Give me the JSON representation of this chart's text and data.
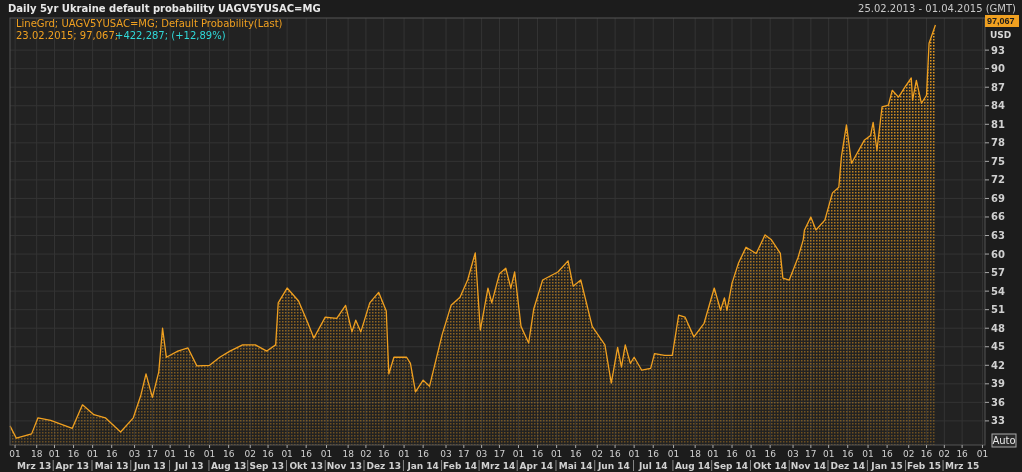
{
  "chart_data": {
    "type": "area",
    "title": "Daily 5yr Ukraine default probability UAGV5YUSAC=MG",
    "annotations": [
      "25.02.2013 - 01.04.2015 (GMT)",
      "23.02.2015; 97,067;",
      "+422,287; (+12,89%)",
      "USD",
      "Auto",
      "97,067"
    ],
    "legend": "top left",
    "grid": true,
    "xlim": [
      "2013-02-25",
      "2015-04-03"
    ],
    "xticks": [
      {
        "value": "2013-03-01",
        "label": "01"
      },
      {
        "value": "2013-03-18",
        "label": "18"
      },
      {
        "value": "2013-04-01",
        "label": "01"
      },
      {
        "value": "2013-04-16",
        "label": "16"
      },
      {
        "value": "2013-05-01",
        "label": "01"
      },
      {
        "value": "2013-05-16",
        "label": "16"
      },
      {
        "value": "2013-06-03",
        "label": "03"
      },
      {
        "value": "2013-06-17",
        "label": "17"
      },
      {
        "value": "2013-07-01",
        "label": "01"
      },
      {
        "value": "2013-07-16",
        "label": "16"
      },
      {
        "value": "2013-08-01",
        "label": "01"
      },
      {
        "value": "2013-08-16",
        "label": "16"
      },
      {
        "value": "2013-09-02",
        "label": "02"
      },
      {
        "value": "2013-09-16",
        "label": "16"
      },
      {
        "value": "2013-10-01",
        "label": "01"
      },
      {
        "value": "2013-10-16",
        "label": "16"
      },
      {
        "value": "2013-11-01",
        "label": "01"
      },
      {
        "value": "2013-11-18",
        "label": "18"
      },
      {
        "value": "2013-12-02",
        "label": "02"
      },
      {
        "value": "2013-12-16",
        "label": "16"
      },
      {
        "value": "2014-01-01",
        "label": "01"
      },
      {
        "value": "2014-01-16",
        "label": "16"
      },
      {
        "value": "2014-02-03",
        "label": "03"
      },
      {
        "value": "2014-02-17",
        "label": "17"
      },
      {
        "value": "2014-03-03",
        "label": "03"
      },
      {
        "value": "2014-03-17",
        "label": "17"
      },
      {
        "value": "2014-04-01",
        "label": "01"
      },
      {
        "value": "2014-04-16",
        "label": "16"
      },
      {
        "value": "2014-05-01",
        "label": "01"
      },
      {
        "value": "2014-05-16",
        "label": "16"
      },
      {
        "value": "2014-06-02",
        "label": "02"
      },
      {
        "value": "2014-06-16",
        "label": "16"
      },
      {
        "value": "2014-07-01",
        "label": "01"
      },
      {
        "value": "2014-07-16",
        "label": "16"
      },
      {
        "value": "2014-08-01",
        "label": "01"
      },
      {
        "value": "2014-08-18",
        "label": "18"
      },
      {
        "value": "2014-09-01",
        "label": "01"
      },
      {
        "value": "2014-09-16",
        "label": "16"
      },
      {
        "value": "2014-10-01",
        "label": "01"
      },
      {
        "value": "2014-10-16",
        "label": "16"
      },
      {
        "value": "2014-11-03",
        "label": "03"
      },
      {
        "value": "2014-11-17",
        "label": "17"
      },
      {
        "value": "2014-12-01",
        "label": "01"
      },
      {
        "value": "2014-12-16",
        "label": "16"
      },
      {
        "value": "2015-01-01",
        "label": "01"
      },
      {
        "value": "2015-01-16",
        "label": "16"
      },
      {
        "value": "2015-02-02",
        "label": "02"
      },
      {
        "value": "2015-02-16",
        "label": "16"
      },
      {
        "value": "2015-03-02",
        "label": "02"
      },
      {
        "value": "2015-03-16",
        "label": "16"
      },
      {
        "value": "2015-04-01",
        "label": "01"
      }
    ],
    "x2lim": [
      "2013-02-25",
      "2015-04-03"
    ],
    "x2ticks": [
      {
        "value": "2013-03-16",
        "label": "Mrz 13"
      },
      {
        "value": "2013-04-15",
        "label": "Apr 13"
      },
      {
        "value": "2013-05-16",
        "label": "Mai 13"
      },
      {
        "value": "2013-06-15",
        "label": "Jun 13"
      },
      {
        "value": "2013-07-16",
        "label": "Jul 13"
      },
      {
        "value": "2013-08-16",
        "label": "Aug 13"
      },
      {
        "value": "2013-09-15",
        "label": "Sep 13"
      },
      {
        "value": "2013-10-16",
        "label": "Okt 13"
      },
      {
        "value": "2013-11-15",
        "label": "Nov 13"
      },
      {
        "value": "2013-12-16",
        "label": "Dez 13"
      },
      {
        "value": "2014-01-16",
        "label": "Jan 14"
      },
      {
        "value": "2014-02-14",
        "label": "Feb 14"
      },
      {
        "value": "2014-03-16",
        "label": "Mrz 14"
      },
      {
        "value": "2014-04-15",
        "label": "Apr 14"
      },
      {
        "value": "2014-05-16",
        "label": "Mai 14"
      },
      {
        "value": "2014-06-15",
        "label": "Jun 14"
      },
      {
        "value": "2014-07-16",
        "label": "Jul 14"
      },
      {
        "value": "2014-08-16",
        "label": "Aug 14"
      },
      {
        "value": "2014-09-15",
        "label": "Sep 14"
      },
      {
        "value": "2014-10-16",
        "label": "Okt 14"
      },
      {
        "value": "2014-11-15",
        "label": "Nov 14"
      },
      {
        "value": "2014-12-16",
        "label": "Dez 14"
      },
      {
        "value": "2015-01-16",
        "label": "Jan 15"
      },
      {
        "value": "2015-02-14",
        "label": "Feb 15"
      },
      {
        "value": "2015-03-16",
        "label": "Mrz 15"
      }
    ],
    "ylim": [
      29.1,
      98.2
    ],
    "yticks": [
      33,
      36,
      39,
      42,
      45,
      48,
      51,
      54,
      57,
      60,
      63,
      66,
      69,
      72,
      75,
      78,
      81,
      84,
      87,
      90,
      93
    ],
    "series": [
      {
        "name": "LineGrd; UAGV5YUSAC=MG; Default Probability(Last)",
        "color": "#f0a020",
        "x": [
          "2013-02-25",
          "2013-03-02",
          "2013-03-14",
          "2013-03-19",
          "2013-03-29",
          "2013-04-15",
          "2013-04-23",
          "2013-05-02",
          "2013-05-11",
          "2013-05-23",
          "2013-06-02",
          "2013-06-08",
          "2013-06-12",
          "2013-06-17",
          "2013-06-22",
          "2013-06-25",
          "2013-06-28",
          "2013-07-07",
          "2013-07-15",
          "2013-07-22",
          "2013-08-01",
          "2013-08-09",
          "2013-08-17",
          "2013-08-27",
          "2013-09-06",
          "2013-09-15",
          "2013-09-22",
          "2013-09-24",
          "2013-10-01",
          "2013-10-10",
          "2013-10-17",
          "2013-10-22",
          "2013-10-31",
          "2013-11-09",
          "2013-11-16",
          "2013-11-21",
          "2013-11-24",
          "2013-11-28",
          "2013-12-05",
          "2013-12-12",
          "2013-12-18",
          "2013-12-20",
          "2013-12-24",
          "2014-01-03",
          "2014-01-06",
          "2014-01-10",
          "2014-01-16",
          "2014-01-21",
          "2014-01-31",
          "2014-02-07",
          "2014-02-14",
          "2014-02-20",
          "2014-02-26",
          "2014-03-02",
          "2014-03-08",
          "2014-03-11",
          "2014-03-17",
          "2014-03-22",
          "2014-03-26",
          "2014-03-29",
          "2014-04-03",
          "2014-04-09",
          "2014-04-13",
          "2014-04-20",
          "2014-05-02",
          "2014-05-10",
          "2014-05-14",
          "2014-05-20",
          "2014-05-29",
          "2014-06-08",
          "2014-06-13",
          "2014-06-18",
          "2014-06-21",
          "2014-06-24",
          "2014-06-28",
          "2014-07-01",
          "2014-07-07",
          "2014-07-14",
          "2014-07-17",
          "2014-07-25",
          "2014-07-31",
          "2014-08-05",
          "2014-08-10",
          "2014-08-17",
          "2014-08-25",
          "2014-09-02",
          "2014-09-07",
          "2014-09-10",
          "2014-09-12",
          "2014-09-16",
          "2014-09-21",
          "2014-09-27",
          "2014-10-05",
          "2014-10-12",
          "2014-10-17",
          "2014-10-24",
          "2014-10-26",
          "2014-10-31",
          "2014-11-07",
          "2014-11-11",
          "2014-11-12",
          "2014-11-17",
          "2014-11-21",
          "2014-11-28",
          "2014-12-04",
          "2014-12-09",
          "2014-12-11",
          "2014-12-15",
          "2014-12-19",
          "2014-12-29",
          "2015-01-03",
          "2015-01-05",
          "2015-01-08",
          "2015-01-12",
          "2015-01-17",
          "2015-01-20",
          "2015-01-25",
          "2015-01-30",
          "2015-02-04",
          "2015-02-05",
          "2015-02-08",
          "2015-02-12",
          "2015-02-16",
          "2015-02-18",
          "2015-02-23"
        ],
        "values": [
          32.2,
          30.2,
          30.9,
          33.5,
          33.1,
          31.8,
          35.6,
          34.0,
          33.5,
          31.2,
          33.5,
          37.2,
          40.6,
          36.8,
          40.9,
          48.0,
          43.3,
          44.3,
          44.8,
          41.9,
          42.0,
          43.3,
          44.3,
          45.3,
          45.3,
          44.3,
          45.3,
          52.1,
          54.5,
          52.4,
          49.0,
          46.4,
          49.8,
          49.6,
          51.7,
          47.4,
          49.3,
          47.4,
          52.1,
          53.8,
          50.8,
          40.6,
          43.3,
          43.3,
          42.3,
          37.7,
          39.6,
          38.6,
          47.0,
          51.7,
          53.0,
          55.8,
          60.2,
          47.7,
          54.5,
          52.1,
          56.8,
          57.7,
          54.5,
          57.1,
          48.3,
          45.6,
          51.1,
          55.8,
          57.1,
          58.9,
          54.8,
          55.8,
          48.3,
          45.3,
          39.1,
          44.9,
          41.7,
          45.3,
          42.3,
          43.3,
          41.2,
          41.5,
          43.9,
          43.6,
          43.6,
          50.1,
          49.8,
          46.6,
          48.8,
          54.5,
          50.9,
          52.9,
          50.9,
          55.3,
          58.5,
          61.1,
          60.1,
          63.1,
          62.3,
          60.1,
          56.1,
          55.8,
          59.5,
          62.3,
          63.9,
          66.0,
          63.9,
          65.5,
          69.9,
          70.8,
          75.7,
          80.9,
          74.7,
          78.4,
          79.2,
          81.3,
          76.8,
          83.8,
          84.1,
          86.5,
          85.4,
          87.0,
          88.5,
          84.9,
          88.1,
          84.4,
          85.7,
          94.1,
          97.067
        ]
      }
    ]
  }
}
